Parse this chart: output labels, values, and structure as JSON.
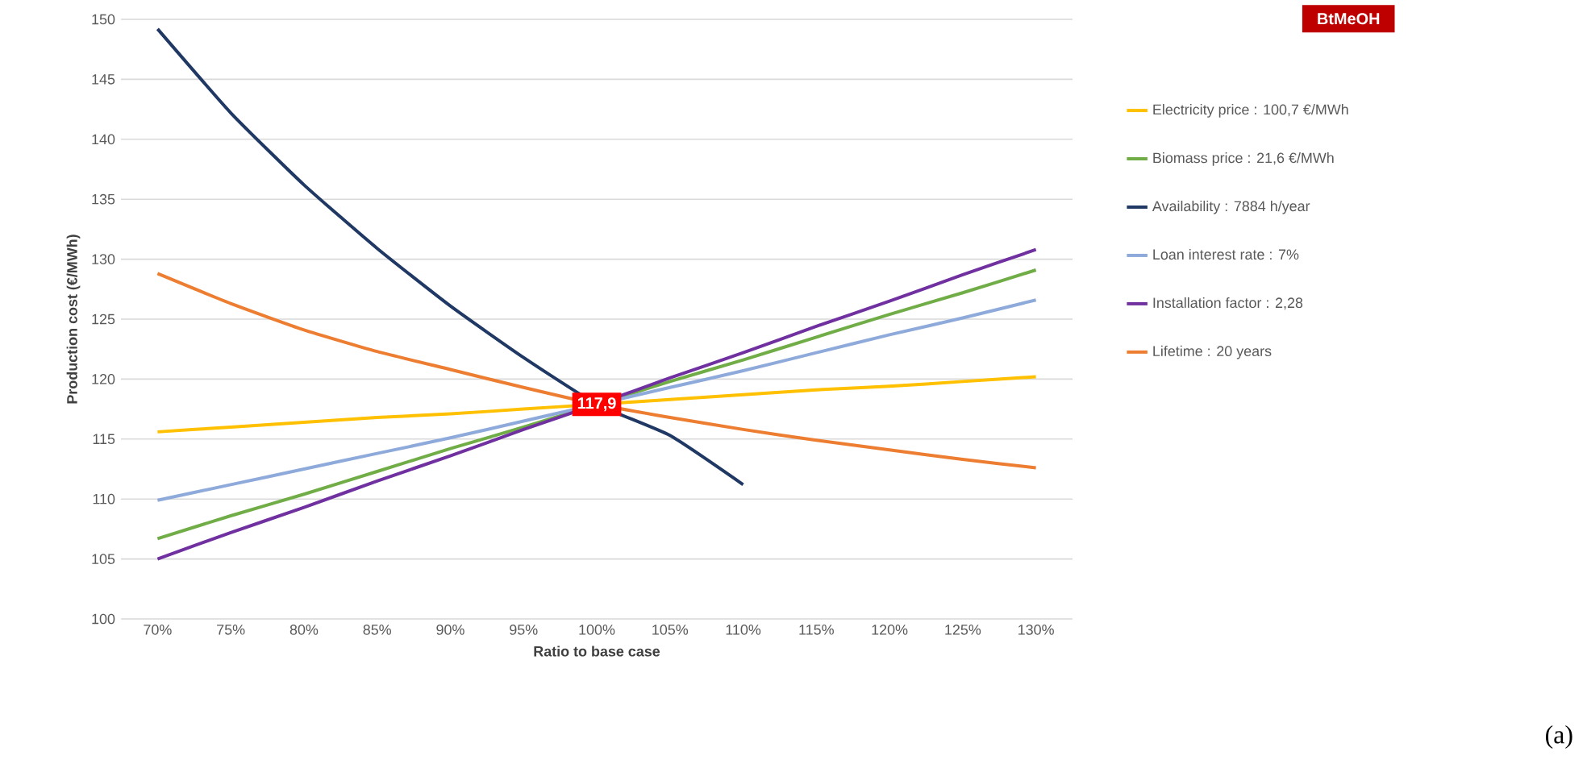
{
  "chart_data": {
    "type": "line",
    "title": "BtMeOH",
    "xlabel": "Ratio to base case",
    "ylabel": "Production cost (€/MWh)",
    "categories": [
      "70%",
      "75%",
      "80%",
      "85%",
      "90%",
      "95%",
      "100%",
      "105%",
      "110%",
      "115%",
      "120%",
      "125%",
      "130%"
    ],
    "ylim": [
      100,
      150
    ],
    "yticks": [
      100,
      105,
      110,
      115,
      120,
      125,
      130,
      135,
      140,
      145,
      150
    ],
    "grid": "y",
    "legend": "right",
    "marker": "none",
    "line_style": "solid",
    "series": [
      {
        "name": "Electricity price : 100,7 €/MWh",
        "color": "#ffc000",
        "values": [
          115.6,
          116.0,
          116.4,
          116.8,
          117.1,
          117.5,
          117.9,
          118.3,
          118.7,
          119.1,
          119.4,
          119.8,
          120.2
        ]
      },
      {
        "name": "Biomass price : 21,6 €/MWh",
        "color": "#70ad47",
        "values": [
          106.7,
          108.6,
          110.4,
          112.3,
          114.2,
          116.0,
          117.9,
          119.8,
          121.6,
          123.5,
          125.4,
          127.2,
          129.1
        ]
      },
      {
        "name": "Availability : 7884 h/year",
        "color": "#1f3864",
        "values": [
          149.2,
          142.2,
          136.2,
          130.9,
          126.1,
          121.8,
          117.9,
          115.3,
          111.2,
          null,
          null,
          null,
          null
        ]
      },
      {
        "name": "Loan interest rate : 7%",
        "color": "#8eaadb",
        "values": [
          109.9,
          111.2,
          112.5,
          113.8,
          115.1,
          116.5,
          117.9,
          119.3,
          120.7,
          122.2,
          123.7,
          125.1,
          126.6
        ]
      },
      {
        "name": "Installation factor : 2,28",
        "color": "#7030a0",
        "values": [
          105.0,
          107.2,
          109.3,
          111.5,
          113.6,
          115.8,
          117.9,
          120.1,
          122.2,
          124.4,
          126.5,
          128.7,
          130.8
        ]
      },
      {
        "name": "Lifetime : 20 years",
        "color": "#ed7d31",
        "values": [
          128.8,
          126.3,
          124.1,
          122.3,
          120.8,
          119.3,
          117.9,
          116.8,
          115.8,
          114.9,
          114.1,
          113.3,
          112.6
        ]
      }
    ],
    "annotations": [
      {
        "text": "117,9",
        "x": "100%",
        "y": 117.9
      },
      "(a)"
    ]
  }
}
